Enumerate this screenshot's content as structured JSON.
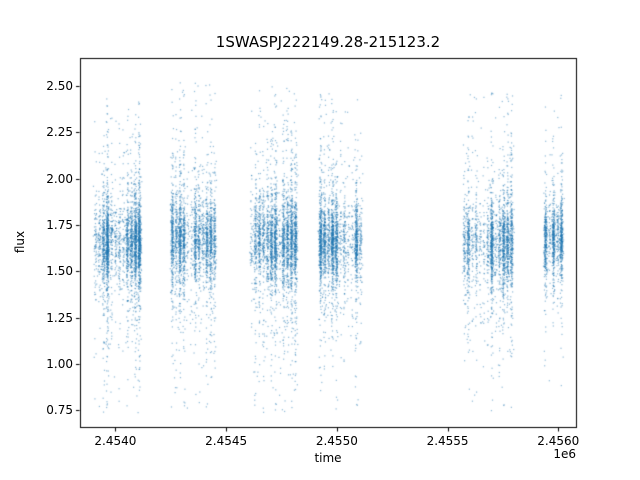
{
  "chart_data": {
    "type": "scatter",
    "title": "1SWASPJ222149.28-215123.2",
    "xlabel": "time",
    "ylabel": "flux",
    "x_offset_label": "1e6",
    "xlim": [
      2453840,
      2456080
    ],
    "ylim": [
      0.66,
      2.65
    ],
    "grid": false,
    "legend": "none",
    "marker_color": "#1f77b4",
    "marker_alpha": 0.5,
    "x_ticks": [
      {
        "value": 2454000,
        "label": "2.4540"
      },
      {
        "value": 2454500,
        "label": "2.4545"
      },
      {
        "value": 2455000,
        "label": "2.4550"
      },
      {
        "value": 2455500,
        "label": "2.4555"
      },
      {
        "value": 2456000,
        "label": "2.4560"
      }
    ],
    "y_ticks": [
      {
        "value": 0.75,
        "label": "0.75"
      },
      {
        "value": 1.0,
        "label": "1.00"
      },
      {
        "value": 1.25,
        "label": "1.25"
      },
      {
        "value": 1.5,
        "label": "1.50"
      },
      {
        "value": 1.75,
        "label": "1.75"
      },
      {
        "value": 2.0,
        "label": "2.00"
      },
      {
        "value": 2.25,
        "label": "2.25"
      },
      {
        "value": 2.5,
        "label": "2.50"
      }
    ],
    "clusters": [
      {
        "x_min": 2453899,
        "x_max": 2454115,
        "n": 3000,
        "flux_mean": 1.66,
        "sigma_core": 0.1,
        "sigma_mid": 0.26,
        "mid_frac": 0.3,
        "tail_frac": 0.055,
        "tail_min": 0.74,
        "tail_max": 2.44
      },
      {
        "x_min": 2454246,
        "x_max": 2454454,
        "n": 2600,
        "flux_mean": 1.67,
        "sigma_core": 0.1,
        "sigma_mid": 0.27,
        "mid_frac": 0.3,
        "tail_frac": 0.06,
        "tail_min": 0.76,
        "tail_max": 2.52
      },
      {
        "x_min": 2454603,
        "x_max": 2454820,
        "n": 3000,
        "flux_mean": 1.66,
        "sigma_core": 0.11,
        "sigma_mid": 0.28,
        "mid_frac": 0.32,
        "tail_frac": 0.06,
        "tail_min": 0.74,
        "tail_max": 2.5
      },
      {
        "x_min": 2454915,
        "x_max": 2455113,
        "n": 2500,
        "flux_mean": 1.66,
        "sigma_core": 0.1,
        "sigma_mid": 0.27,
        "mid_frac": 0.3,
        "tail_frac": 0.055,
        "tail_min": 0.76,
        "tail_max": 2.46
      },
      {
        "x_min": 2455565,
        "x_max": 2455795,
        "n": 2400,
        "flux_mean": 1.65,
        "sigma_core": 0.11,
        "sigma_mid": 0.28,
        "mid_frac": 0.3,
        "tail_frac": 0.06,
        "tail_min": 0.75,
        "tail_max": 2.48
      },
      {
        "x_min": 2455931,
        "x_max": 2456021,
        "n": 1200,
        "flux_mean": 1.68,
        "sigma_core": 0.09,
        "sigma_mid": 0.22,
        "mid_frac": 0.25,
        "tail_frac": 0.04,
        "tail_min": 0.88,
        "tail_max": 2.46
      }
    ]
  }
}
